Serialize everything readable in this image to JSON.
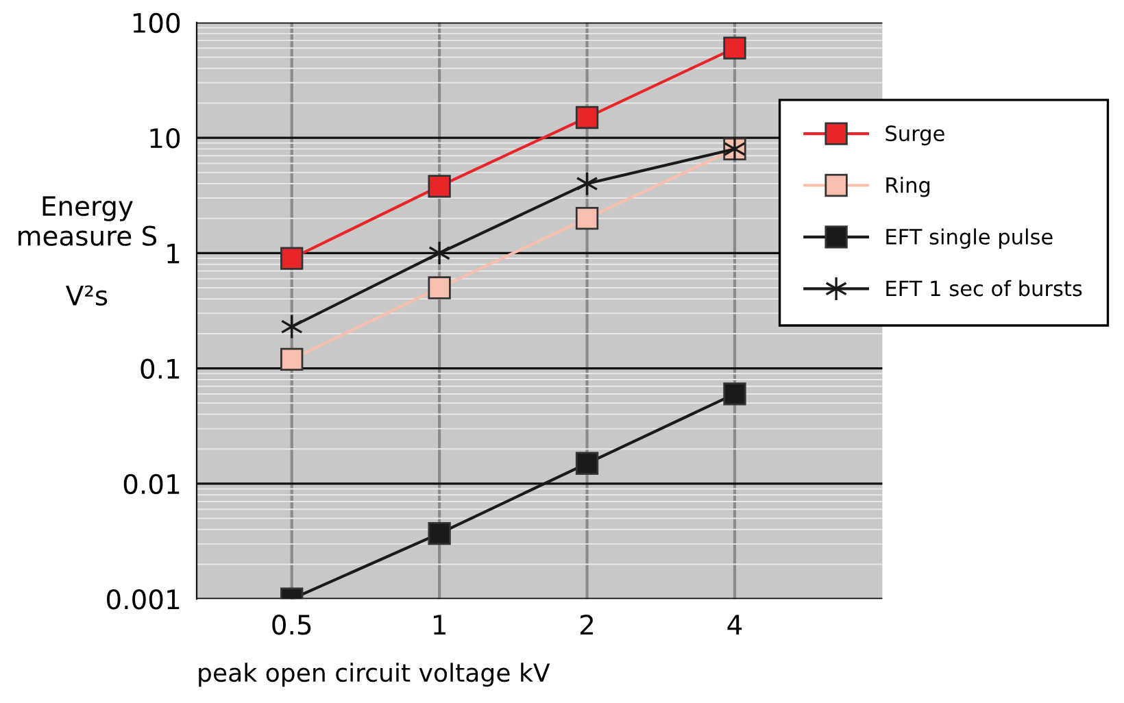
{
  "chart_data": {
    "type": "line",
    "xlabel": "peak open circuit voltage kV",
    "ylabel": "Energy\nmeasure S\n\nV²s",
    "x": [
      0.5,
      1,
      2,
      4
    ],
    "log": "xy",
    "xlim": [
      0.32,
      8
    ],
    "xticks": [
      0.5,
      1,
      2,
      4
    ],
    "ylim": [
      0.001,
      100
    ],
    "yticks": [
      0.001,
      0.01,
      0.1,
      1,
      10,
      100
    ],
    "grid": true,
    "legend": "right",
    "series": [
      {
        "name": "Surge",
        "color": "#e8262a",
        "marker": "square",
        "values": [
          0.9,
          3.8,
          15,
          60
        ]
      },
      {
        "name": "Ring",
        "color": "#f7bfae",
        "marker": "square",
        "values": [
          0.12,
          0.5,
          2,
          8
        ]
      },
      {
        "name": "EFT single pulse",
        "color": "#1a1a1a",
        "marker": "square",
        "values": [
          0.001,
          0.0037,
          0.015,
          0.06
        ]
      },
      {
        "name": "EFT 1 sec of bursts",
        "color": "#1a1a1a",
        "marker": "cross",
        "values": [
          0.23,
          1,
          4,
          8
        ]
      }
    ]
  }
}
